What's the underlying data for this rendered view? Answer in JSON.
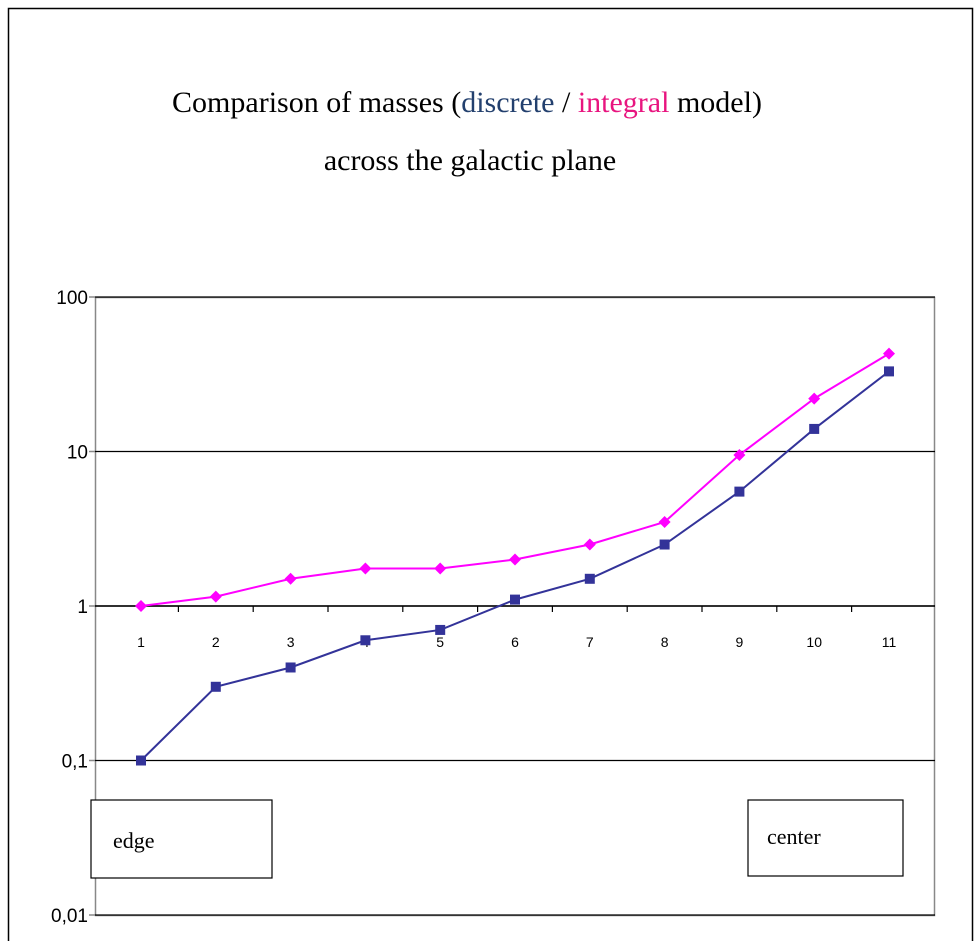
{
  "chart_data": {
    "type": "line",
    "title": [
      {
        "text": "Comparison of masses ("
      },
      {
        "text": "discrete",
        "color": "#23406e"
      },
      {
        "text": " / "
      },
      {
        "text": "integral",
        "color": "#e8157f"
      },
      {
        "text": " model)"
      }
    ],
    "subtitle": "across the galactic plane",
    "categories": [
      "1",
      "2",
      "3",
      "4",
      "5",
      "6",
      "7",
      "8",
      "9",
      "10",
      "11"
    ],
    "series": [
      {
        "name": "discrete",
        "color": "#333399",
        "marker": "square",
        "values": [
          0.1,
          0.3,
          0.4,
          0.6,
          0.7,
          1.1,
          1.5,
          2.5,
          5.5,
          14,
          33
        ]
      },
      {
        "name": "integral",
        "color": "#ff00ff",
        "marker": "diamond",
        "values": [
          1,
          1.15,
          1.5,
          1.75,
          1.75,
          2,
          2.5,
          3.5,
          9.5,
          22,
          43
        ]
      }
    ],
    "log_scale": "y",
    "ylim": [
      0.01,
      100
    ],
    "yticks": [
      {
        "value": 0.01,
        "label": "0,01"
      },
      {
        "value": 0.1,
        "label": "0,1"
      },
      1,
      10,
      100
    ],
    "x_axis_crosses": 1,
    "grid": true,
    "annotations": [
      "edge",
      "center"
    ]
  }
}
